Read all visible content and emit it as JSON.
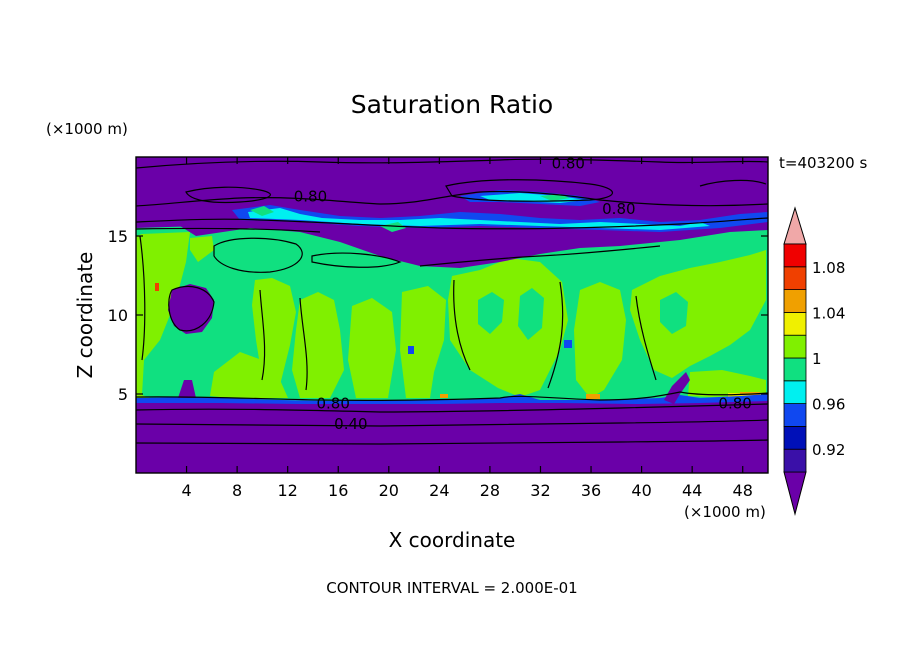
{
  "chart_data": {
    "type": "heatmap",
    "title": "Saturation Ratio",
    "xlabel": "X coordinate",
    "ylabel": "Z coordinate",
    "x_unit": "(×1000 m)",
    "y_unit": "(×1000 m)",
    "time_label": "t=403200 s",
    "footer": "CONTOUR INTERVAL = 2.000E-01",
    "xlim": [
      0,
      50
    ],
    "ylim": [
      0,
      20
    ],
    "x_ticks": [
      4,
      8,
      12,
      16,
      20,
      24,
      28,
      32,
      36,
      40,
      44,
      48
    ],
    "y_ticks": [
      5,
      10,
      15
    ],
    "colorbar": {
      "levels": [
        0.9,
        0.92,
        0.94,
        0.96,
        0.98,
        1.0,
        1.02,
        1.04,
        1.06,
        1.08,
        1.1
      ],
      "tick_labels": [
        "0.92",
        "0.96",
        "1",
        "1.04",
        "1.08"
      ],
      "colors": [
        "#6a00a8",
        "#3a10a8",
        "#0010b8",
        "#1048f0",
        "#00f0f0",
        "#10e080",
        "#80f000",
        "#f0f000",
        "#f0a000",
        "#f04000",
        "#f00000",
        "#f0a8a8"
      ],
      "extend": "both"
    },
    "contour_labels": [
      {
        "text": "0.80",
        "x": 13.8,
        "y": 17.5
      },
      {
        "text": "0.80",
        "x": 34.2,
        "y": 19.6
      },
      {
        "text": "0.80",
        "x": 38.2,
        "y": 16.7
      },
      {
        "text": "0.80",
        "x": 15.6,
        "y": 4.4
      },
      {
        "text": "0.40",
        "x": 17.0,
        "y": 3.1
      },
      {
        "text": "0.80",
        "x": 47.4,
        "y": 4.4
      }
    ],
    "regions": {
      "lower_layer_top_z": 4.8,
      "moist_layer": [
        4.8,
        15.5
      ],
      "upper_dry_layer_bottom_z": 16.3
    }
  }
}
